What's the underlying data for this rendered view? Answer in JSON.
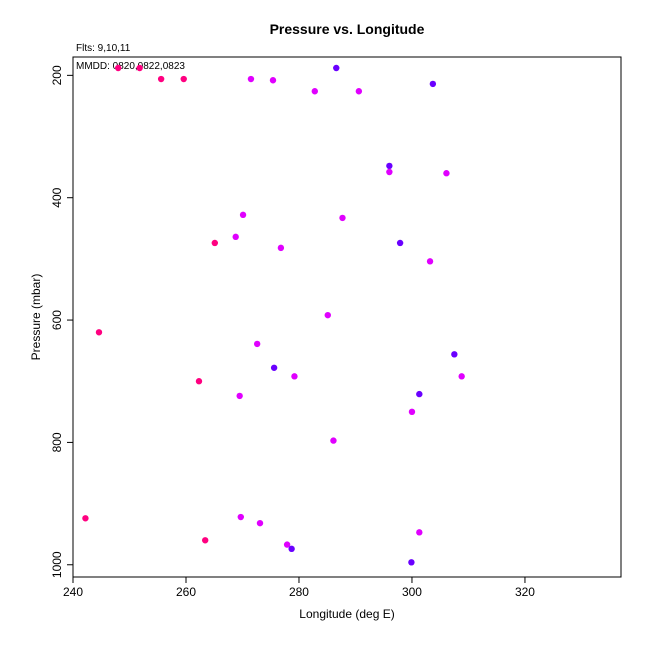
{
  "chart_data": {
    "type": "scatter",
    "title": "Pressure vs. Longitude",
    "xlabel": "Longitude (deg E)",
    "ylabel": "Pressure (mbar)",
    "xlim": [
      240,
      337
    ],
    "ylim": [
      1020,
      170
    ],
    "y_axis_inverted": true,
    "xticks": [
      240,
      260,
      280,
      300,
      320
    ],
    "yticks": [
      200,
      400,
      600,
      800,
      1000
    ],
    "grid": false,
    "annotations": {
      "flights": "Flts: 9,10,11",
      "mmdd": "MMDD: 0820,0822,0823"
    },
    "colors": {
      "flight_9": "#ff0080",
      "flight_10": "#e000ff",
      "flight_11": "#6a00ff"
    },
    "points": [
      {
        "x": 248.0,
        "y": 188,
        "c": "#ff0080"
      },
      {
        "x": 251.8,
        "y": 188,
        "c": "#ff0080"
      },
      {
        "x": 255.6,
        "y": 206,
        "c": "#ff0080"
      },
      {
        "x": 259.6,
        "y": 206,
        "c": "#ff0080"
      },
      {
        "x": 271.5,
        "y": 206,
        "c": "#e000ff"
      },
      {
        "x": 275.4,
        "y": 208,
        "c": "#e000ff"
      },
      {
        "x": 286.6,
        "y": 188,
        "c": "#6a00ff"
      },
      {
        "x": 282.8,
        "y": 226,
        "c": "#e000ff"
      },
      {
        "x": 290.6,
        "y": 226,
        "c": "#e000ff"
      },
      {
        "x": 303.7,
        "y": 214,
        "c": "#6a00ff"
      },
      {
        "x": 296.0,
        "y": 348,
        "c": "#6a00ff"
      },
      {
        "x": 296.0,
        "y": 358,
        "c": "#e000ff"
      },
      {
        "x": 306.1,
        "y": 360,
        "c": "#e000ff"
      },
      {
        "x": 270.1,
        "y": 428,
        "c": "#e000ff"
      },
      {
        "x": 287.7,
        "y": 433,
        "c": "#e000ff"
      },
      {
        "x": 268.8,
        "y": 464,
        "c": "#e000ff"
      },
      {
        "x": 265.1,
        "y": 474,
        "c": "#ff0080"
      },
      {
        "x": 297.9,
        "y": 474,
        "c": "#6a00ff"
      },
      {
        "x": 276.8,
        "y": 482,
        "c": "#e000ff"
      },
      {
        "x": 303.2,
        "y": 504,
        "c": "#e000ff"
      },
      {
        "x": 285.1,
        "y": 592,
        "c": "#e000ff"
      },
      {
        "x": 244.6,
        "y": 620,
        "c": "#ff0080"
      },
      {
        "x": 272.6,
        "y": 639,
        "c": "#e000ff"
      },
      {
        "x": 307.5,
        "y": 656,
        "c": "#6a00ff"
      },
      {
        "x": 275.6,
        "y": 678,
        "c": "#6a00ff"
      },
      {
        "x": 279.2,
        "y": 692,
        "c": "#e000ff"
      },
      {
        "x": 308.8,
        "y": 692,
        "c": "#e000ff"
      },
      {
        "x": 262.3,
        "y": 700,
        "c": "#ff0080"
      },
      {
        "x": 269.5,
        "y": 724,
        "c": "#e000ff"
      },
      {
        "x": 301.3,
        "y": 721,
        "c": "#6a00ff"
      },
      {
        "x": 300.0,
        "y": 750,
        "c": "#e000ff"
      },
      {
        "x": 286.1,
        "y": 797,
        "c": "#e000ff"
      },
      {
        "x": 242.2,
        "y": 924,
        "c": "#ff0080"
      },
      {
        "x": 269.7,
        "y": 922,
        "c": "#e000ff"
      },
      {
        "x": 273.1,
        "y": 932,
        "c": "#e000ff"
      },
      {
        "x": 301.3,
        "y": 947,
        "c": "#e000ff"
      },
      {
        "x": 263.4,
        "y": 960,
        "c": "#ff0080"
      },
      {
        "x": 277.9,
        "y": 967,
        "c": "#e000ff"
      },
      {
        "x": 278.7,
        "y": 974,
        "c": "#6a00ff"
      },
      {
        "x": 299.9,
        "y": 996,
        "c": "#6a00ff"
      }
    ]
  }
}
